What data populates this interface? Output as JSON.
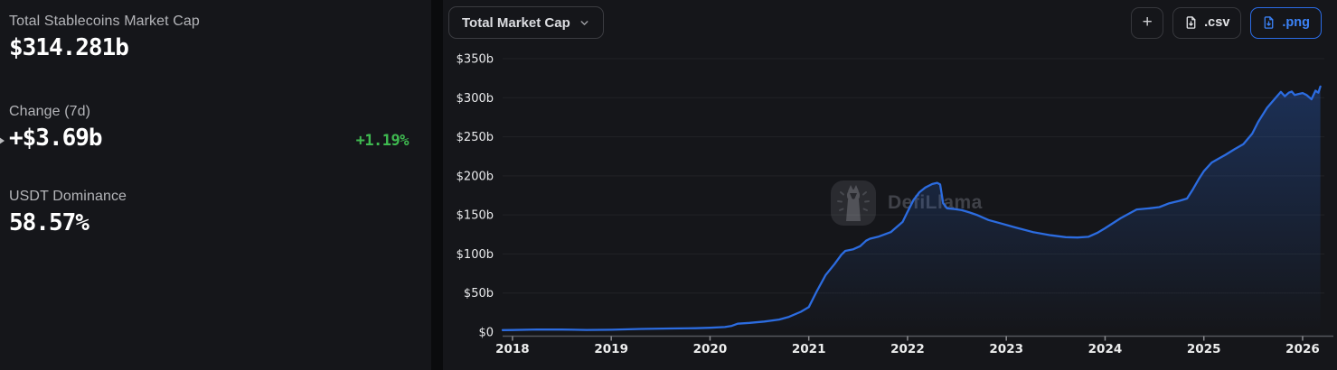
{
  "stats": {
    "market_cap": {
      "label": "Total Stablecoins Market Cap",
      "value": "$314.281b"
    },
    "change": {
      "label": "Change (7d)",
      "value": "+$3.69b",
      "percent": "+1.19%"
    },
    "dominance": {
      "label": "USDT Dominance",
      "value": "58.57%"
    }
  },
  "toolbar": {
    "metric_label": "Total Market Cap",
    "metric_chevron_icon": "chevron-down",
    "add_label": "+",
    "csv_label": ".csv",
    "png_label": ".png",
    "export_icon": "file-download"
  },
  "watermark": {
    "text": "DefiLlama",
    "logo_icon": "defillama-llama"
  },
  "colors": {
    "accent_blue": "#2c6ce0",
    "positive_green": "#3fb950",
    "panel_bg": "#15161a",
    "page_bg": "#0a0b0d",
    "label_gray": "#b4b5b9",
    "value_white": "#ffffff"
  },
  "chart_data": {
    "type": "area",
    "title": "Total Market Cap",
    "xlabel": "",
    "ylabel": "",
    "legend": "none",
    "grid": "horizontal",
    "xlim": [
      2017.9,
      2026.22
    ],
    "ylim": [
      0,
      350
    ],
    "line_color": "#2c6ce0",
    "fill_gradient_top": "rgba(44,108,224,0.30)",
    "fill_gradient_bottom": "rgba(44,108,224,0)",
    "yticks": {
      "values": [
        0,
        50,
        100,
        150,
        200,
        250,
        300,
        350
      ],
      "labels": [
        "$0",
        "$50b",
        "$100b",
        "$150b",
        "$200b",
        "$250b",
        "$300b",
        "$350b"
      ]
    },
    "xticks": {
      "values": [
        2018,
        2019,
        2020,
        2021,
        2022,
        2023,
        2024,
        2025,
        2026
      ],
      "labels": [
        "2018",
        "2019",
        "2020",
        "2021",
        "2022",
        "2023",
        "2024",
        "2025",
        "2026"
      ]
    },
    "x": [
      2017.9,
      2018.0,
      2018.25,
      2018.5,
      2018.75,
      2019.0,
      2019.3,
      2019.6,
      2019.85,
      2020.0,
      2020.15,
      2020.22,
      2020.28,
      2020.4,
      2020.55,
      2020.7,
      2020.8,
      2020.92,
      2021.0,
      2021.08,
      2021.17,
      2021.26,
      2021.33,
      2021.37,
      2021.45,
      2021.52,
      2021.58,
      2021.62,
      2021.7,
      2021.83,
      2021.95,
      2022.0,
      2022.06,
      2022.12,
      2022.18,
      2022.25,
      2022.3,
      2022.33,
      2022.36,
      2022.4,
      2022.48,
      2022.55,
      2022.63,
      2022.7,
      2022.82,
      2022.95,
      2023.09,
      2023.27,
      2023.45,
      2023.6,
      2023.72,
      2023.83,
      2023.92,
      2024.0,
      2024.16,
      2024.32,
      2024.45,
      2024.55,
      2024.65,
      2024.75,
      2024.83,
      2024.89,
      2024.95,
      2025.0,
      2025.08,
      2025.15,
      2025.22,
      2025.31,
      2025.4,
      2025.49,
      2025.55,
      2025.64,
      2025.72,
      2025.78,
      2025.82,
      2025.86,
      2025.89,
      2025.92,
      2025.95,
      2026.0,
      2026.04,
      2026.09,
      2026.13,
      2026.16,
      2026.18
    ],
    "y": [
      2.5,
      2.7,
      3.4,
      3.2,
      2.8,
      3.0,
      4.0,
      4.6,
      5.0,
      5.6,
      6.5,
      8.0,
      10.8,
      11.8,
      13.5,
      16.0,
      19.5,
      26.0,
      32.0,
      52.0,
      73.0,
      87.0,
      99.0,
      104.0,
      106.0,
      110.0,
      117.0,
      119.5,
      122.0,
      128.0,
      141.0,
      154.0,
      169.0,
      179.0,
      185.0,
      189.5,
      191.0,
      189.0,
      165.0,
      158.5,
      157.5,
      156.0,
      153.0,
      150.0,
      143.5,
      139.0,
      134.0,
      128.0,
      124.0,
      121.5,
      121.0,
      122.0,
      127.0,
      133.0,
      146.0,
      157.0,
      158.5,
      160.0,
      165.0,
      168.0,
      171.0,
      183.0,
      196.0,
      206.0,
      217.0,
      222.0,
      227.0,
      234.0,
      240.5,
      254.0,
      269.0,
      287.0,
      299.0,
      307.5,
      302.0,
      306.5,
      308.0,
      303.5,
      304.5,
      306.0,
      303.5,
      298.0,
      309.0,
      306.5,
      314.3
    ]
  }
}
